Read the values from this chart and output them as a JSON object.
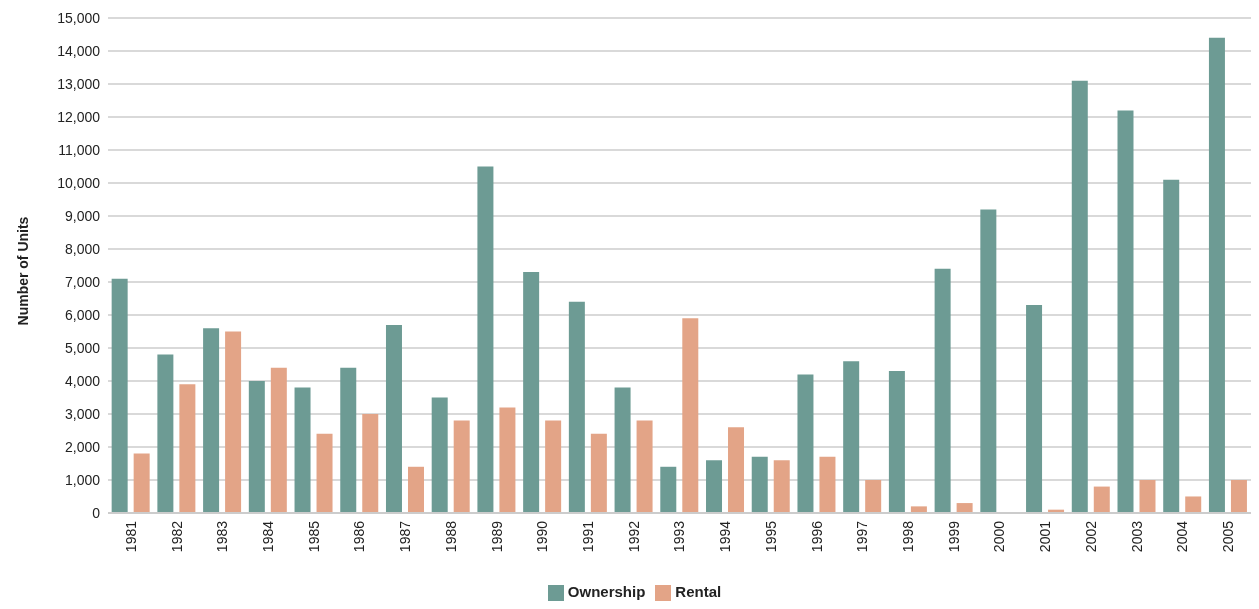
{
  "chart_data": {
    "type": "bar",
    "ylabel": "Number of Units",
    "categories": [
      "1981",
      "1982",
      "1983",
      "1984",
      "1985",
      "1986",
      "1987",
      "1988",
      "1989",
      "1990",
      "1991",
      "1992",
      "1993",
      "1994",
      "1995",
      "1996",
      "1997",
      "1998",
      "1999",
      "2000",
      "2001",
      "2002",
      "2003",
      "2004",
      "2005"
    ],
    "series": [
      {
        "name": "Ownership",
        "color": "#6d9b94",
        "values": [
          7100,
          4800,
          5600,
          4000,
          3800,
          4400,
          5700,
          3500,
          10500,
          7300,
          6400,
          3800,
          1400,
          1600,
          1700,
          4200,
          4600,
          4300,
          7400,
          9200,
          6300,
          13100,
          12200,
          10100,
          14400
        ]
      },
      {
        "name": "Rental",
        "color": "#e3a487",
        "values": [
          1800,
          3900,
          5500,
          4400,
          2400,
          3000,
          1400,
          2800,
          3200,
          2800,
          2400,
          2800,
          5900,
          2600,
          1600,
          1700,
          1000,
          200,
          300,
          0,
          100,
          800,
          1000,
          500,
          1000
        ]
      }
    ],
    "ylim": [
      0,
      15000
    ],
    "yticks": [
      0,
      {
        "value": 1000,
        "label": "1,000"
      },
      {
        "value": 2000,
        "label": "2,000"
      },
      {
        "value": 3000,
        "label": "3,000"
      },
      {
        "value": 4000,
        "label": "4,000"
      },
      {
        "value": 5000,
        "label": "5,000"
      },
      {
        "value": 6000,
        "label": "6,000"
      },
      {
        "value": 7000,
        "label": "7,000"
      },
      {
        "value": 8000,
        "label": "8,000"
      },
      {
        "value": 9000,
        "label": "9,000"
      },
      {
        "value": 10000,
        "label": "10,000"
      },
      {
        "value": 11000,
        "label": "11,000"
      },
      {
        "value": 12000,
        "label": "12,000"
      },
      {
        "value": 13000,
        "label": "13,000"
      },
      {
        "value": 14000,
        "label": "14,000"
      },
      {
        "value": 15000,
        "label": "15,000"
      }
    ],
    "grid": "y",
    "legend": "bottom"
  }
}
